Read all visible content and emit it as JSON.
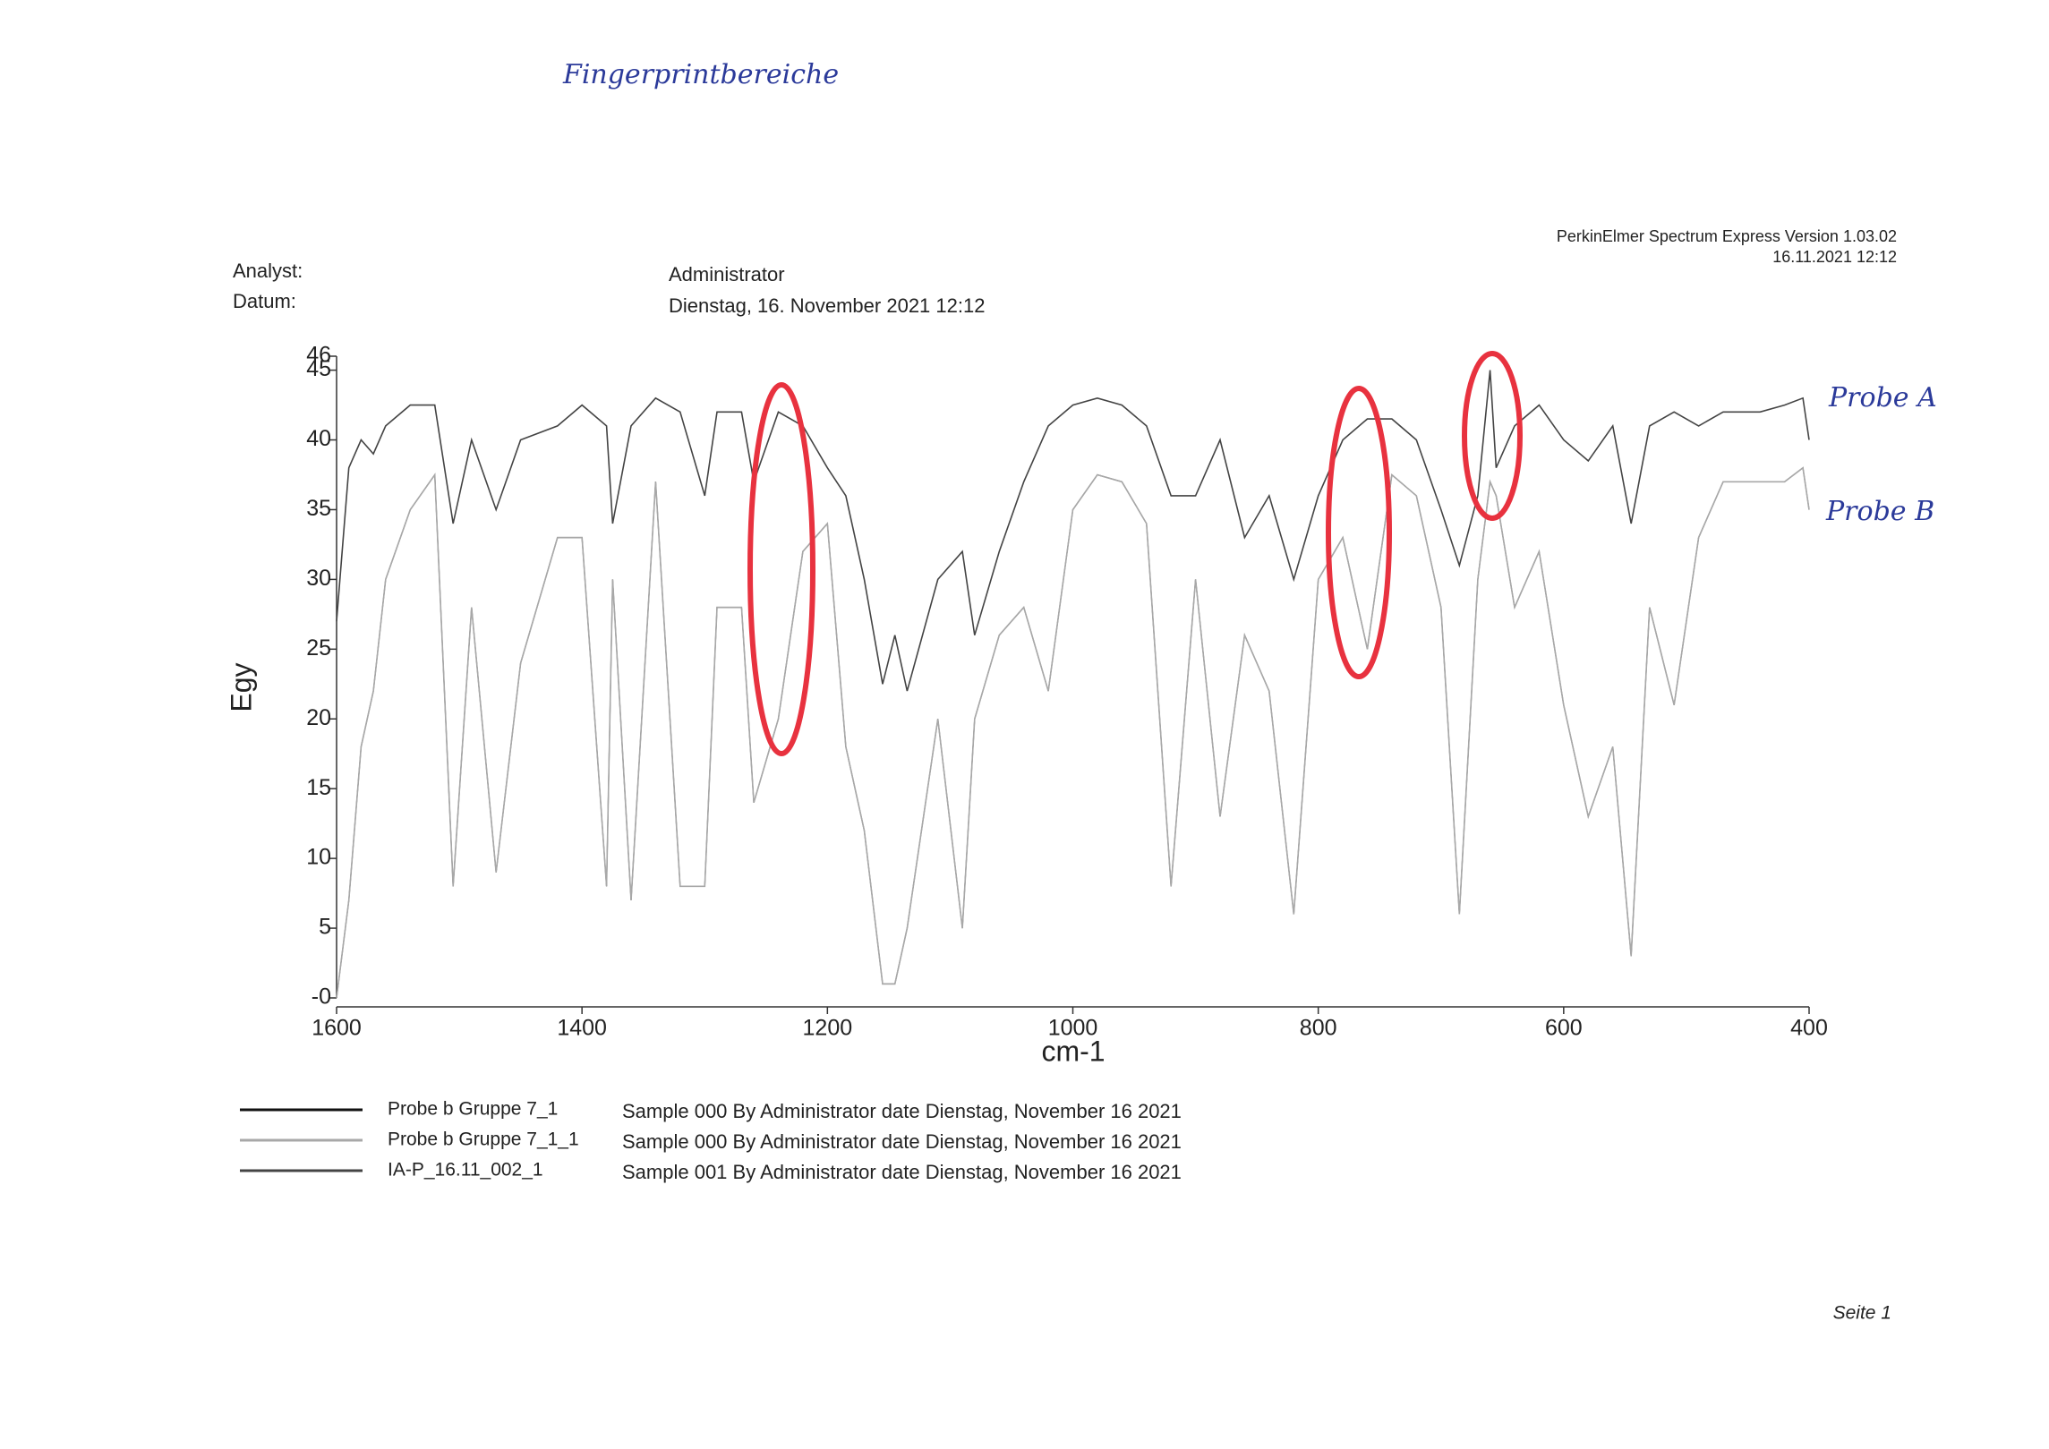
{
  "header": {
    "handwritten_note": "Fingerprintbereiche",
    "software": "PerkinElmer Spectrum Express Version 1.03.02",
    "print_date": "16.11.2021 12:12",
    "analyst_label": "Analyst:",
    "analyst": "Administrator",
    "date_label": "Datum:",
    "date": "Dienstag, 16. November 2021 12:12"
  },
  "chart_data": {
    "type": "line",
    "x_label": "cm-1",
    "y_label": "Egy",
    "xlim": [
      1600,
      400
    ],
    "xticks": [
      1600,
      1400,
      1200,
      1000,
      800,
      600,
      400
    ],
    "ylim": [
      0,
      46
    ],
    "yticks": [
      {
        "value": 0,
        "label": "-0"
      },
      5,
      10,
      15,
      20,
      25,
      30,
      35,
      40,
      45,
      46
    ],
    "x": [
      1600,
      1590,
      1580,
      1570,
      1560,
      1540,
      1520,
      1505,
      1490,
      1470,
      1450,
      1420,
      1400,
      1380,
      1375,
      1360,
      1340,
      1320,
      1300,
      1290,
      1270,
      1260,
      1240,
      1220,
      1200,
      1185,
      1170,
      1155,
      1145,
      1135,
      1110,
      1090,
      1080,
      1060,
      1040,
      1020,
      1000,
      980,
      960,
      940,
      920,
      900,
      880,
      860,
      840,
      820,
      800,
      780,
      760,
      740,
      720,
      700,
      685,
      670,
      660,
      655,
      640,
      620,
      600,
      580,
      560,
      545,
      530,
      510,
      490,
      470,
      440,
      420,
      405,
      400
    ],
    "series": [
      {
        "name": "Probe b Gruppe 7_1",
        "description": "Sample 000 By Administrator date Dienstag, November 16 2021",
        "color": "#111111",
        "values": [
          0,
          7,
          18,
          22,
          30,
          35,
          37.5,
          8,
          28,
          9,
          24,
          33,
          33,
          8,
          30,
          7,
          37,
          8,
          8,
          28,
          28,
          14,
          20,
          32,
          34,
          18,
          12,
          1,
          1,
          5,
          20,
          5,
          20,
          26,
          28,
          22,
          35,
          37.5,
          37,
          34,
          8,
          30,
          13,
          26,
          22,
          6,
          30,
          33,
          25,
          37.5,
          36,
          28,
          6,
          30,
          37,
          36,
          28,
          32,
          21,
          13,
          18,
          3,
          28,
          21,
          33,
          37,
          37,
          37,
          38,
          35
        ]
      },
      {
        "name": "Probe b Gruppe 7_1_1",
        "description": "Sample 000 By Administrator date Dienstag, November 16 2021",
        "color": "#a8a8a8",
        "values": [
          0,
          7,
          18,
          22,
          30,
          35,
          37.5,
          8,
          28,
          9,
          24,
          33,
          33,
          8,
          30,
          7,
          37,
          8,
          8,
          28,
          28,
          14,
          20,
          32,
          34,
          18,
          12,
          1,
          1,
          5,
          20,
          5,
          20,
          26,
          28,
          22,
          35,
          37.5,
          37,
          34,
          8,
          30,
          13,
          26,
          22,
          6,
          30,
          33,
          25,
          37.5,
          36,
          28,
          6,
          30,
          37,
          36,
          28,
          32,
          21,
          13,
          18,
          3,
          28,
          21,
          33,
          37,
          37,
          37,
          38,
          35
        ]
      },
      {
        "name": "IA-P_16.11_002_1",
        "description": "Sample 001 By Administrator date Dienstag, November 16 2021",
        "color": "#444444",
        "values": [
          27,
          38,
          40,
          39,
          41,
          42.5,
          42.5,
          34,
          40,
          35,
          40,
          41,
          42.5,
          41,
          34,
          41,
          43,
          42,
          36,
          42,
          42,
          37,
          42,
          41,
          38,
          36,
          30,
          22.5,
          26,
          22,
          30,
          32,
          26,
          32,
          37,
          41,
          42.5,
          43,
          42.5,
          41,
          36,
          36,
          40,
          33,
          36,
          30,
          36,
          40,
          41.5,
          41.5,
          40,
          35,
          31,
          36,
          45,
          38,
          41,
          42.5,
          40,
          38.5,
          41,
          34,
          41,
          42,
          41,
          42,
          42,
          42.5,
          43,
          40
        ]
      }
    ],
    "annotations": [
      "Probe A",
      "Probe B"
    ]
  },
  "footer": {
    "page": "Seite 1"
  }
}
